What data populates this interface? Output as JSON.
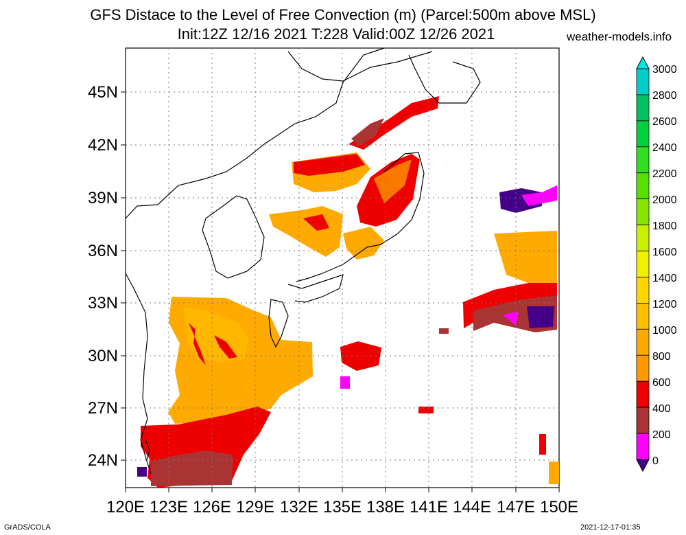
{
  "header": {
    "title": "GFS Distace to the Level of Free Convection (m) (Parcel:500m above MSL)",
    "subtitle": "Init:12Z 12/16 2021 T:228 Valid:00Z 12/26 2021",
    "site": "weather-models.info"
  },
  "footer": {
    "left": "GrADS/COLA",
    "right": "2021-12-17-01:35"
  },
  "map": {
    "lat_labels": [
      "45N",
      "42N",
      "39N",
      "36N",
      "33N",
      "30N",
      "27N",
      "24N"
    ],
    "lon_labels": [
      "120E",
      "123E",
      "126E",
      "129E",
      "132E",
      "135E",
      "138E",
      "141E",
      "144E",
      "147E",
      "150E"
    ]
  },
  "colorbar": {
    "labels": [
      "3000",
      "2800",
      "2600",
      "2400",
      "2200",
      "2000",
      "1800",
      "1600",
      "1400",
      "1200",
      "1000",
      "800",
      "600",
      "400",
      "200",
      "0"
    ],
    "colors": [
      "#00e8e0",
      "#00ccc8",
      "#00c060",
      "#00d040",
      "#33dd22",
      "#55e000",
      "#88e600",
      "#c8f000",
      "#f0f000",
      "#ffd700",
      "#ffc000",
      "#ffaa00",
      "#ff9900",
      "#ee0000",
      "#aa3333",
      "#ff00ff",
      "#440088"
    ]
  }
}
